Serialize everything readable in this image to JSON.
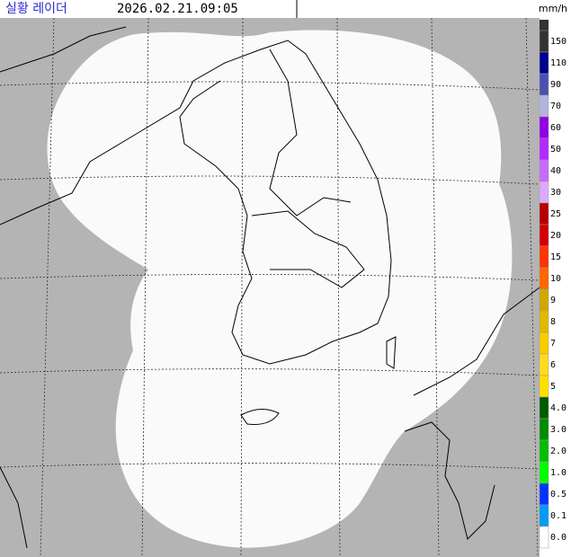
{
  "header": {
    "title": "실황 레이더",
    "timestamp": "2026.02.21.09:05"
  },
  "legend": {
    "unit": "mm/h",
    "items": [
      {
        "label": "150",
        "color": "#333333"
      },
      {
        "label": "110",
        "color": "#000390"
      },
      {
        "label": "90",
        "color": "#4c4eb1"
      },
      {
        "label": "70",
        "color": "#b3b4de"
      },
      {
        "label": "60",
        "color": "#9300e4"
      },
      {
        "label": "50",
        "color": "#b329ff"
      },
      {
        "label": "40",
        "color": "#c969ff"
      },
      {
        "label": "30",
        "color": "#dfa9ff"
      },
      {
        "label": "25",
        "color": "#b40000"
      },
      {
        "label": "20",
        "color": "#d20000"
      },
      {
        "label": "15",
        "color": "#ff3300"
      },
      {
        "label": "10",
        "color": "#ff6600"
      },
      {
        "label": "9",
        "color": "#ccaa00"
      },
      {
        "label": "8",
        "color": "#e0b900"
      },
      {
        "label": "7",
        "color": "#f9cd00"
      },
      {
        "label": "6",
        "color": "#ffdc1f"
      },
      {
        "label": "5",
        "color": "#ffe100"
      },
      {
        "label": "4.0",
        "color": "#005a00"
      },
      {
        "label": "3.0",
        "color": "#008c00"
      },
      {
        "label": "2.0",
        "color": "#00be00"
      },
      {
        "label": "1.0",
        "color": "#00ff00"
      },
      {
        "label": "0.5",
        "color": "#0033ff"
      },
      {
        "label": "0.1",
        "color": "#009bf5"
      },
      {
        "label": "0.0",
        "color": "#ffffff"
      }
    ]
  }
}
